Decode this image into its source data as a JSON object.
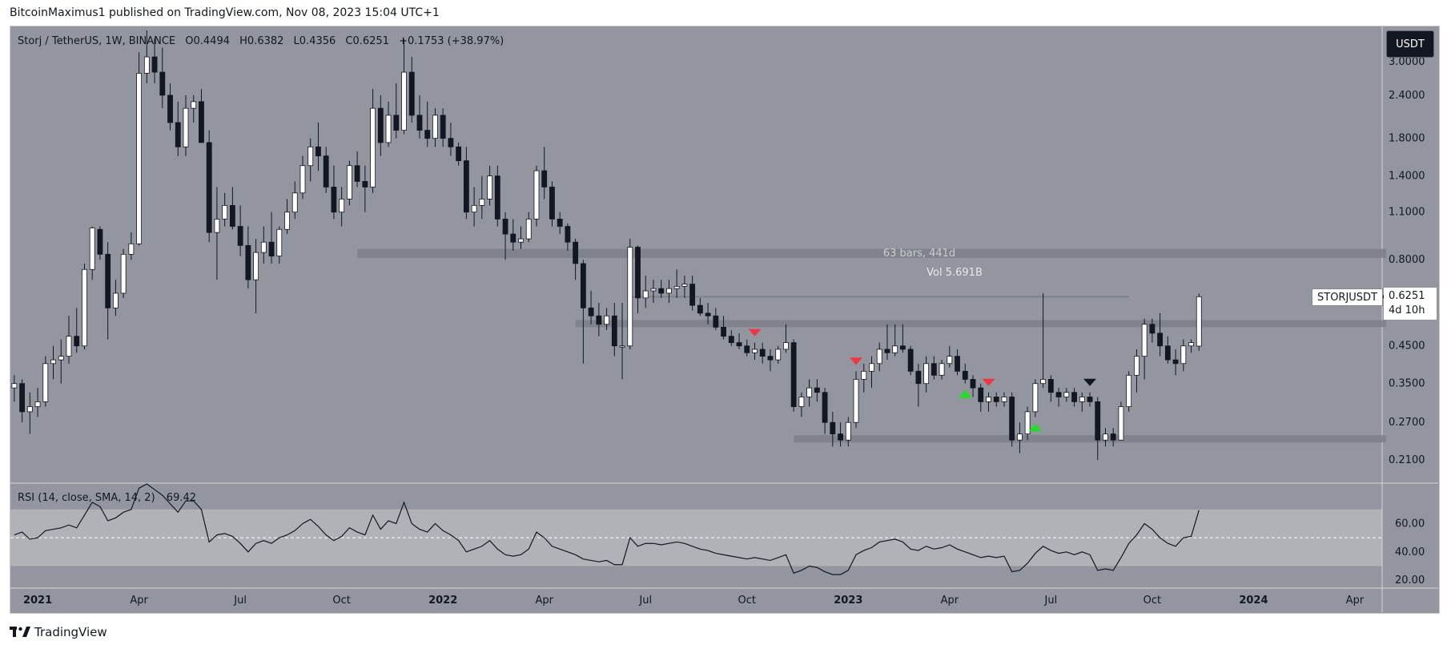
{
  "header": {
    "text": "BitcoinMaximus1 published on TradingView.com, Nov 08, 2023 15:04 UTC+1"
  },
  "legend": {
    "pair": "Storj / TetherUS, 1W, BINANCE",
    "open": "O0.4494",
    "high": "H0.6382",
    "low": "L0.4356",
    "close": "C0.6251",
    "change": "+0.1753 (+38.97%)"
  },
  "currency_button": "USDT",
  "ticker_label": "STORJUSDT",
  "price_tag": {
    "price": "0.6251",
    "countdown": "4d 10h"
  },
  "measure_label": "63 bars, 441d",
  "volume_label": "Vol 5.691B",
  "rsi_legend": {
    "label": "RSI (14, close, SMA, 14, 2)",
    "value": "69.42"
  },
  "brand": "TradingView",
  "colors": {
    "background": "#93969f",
    "bull": "#ffffff",
    "bear": "#131722",
    "band": "#7d8088",
    "red_marker": "#f23645",
    "green_marker": "#22dd22"
  },
  "chart_data": {
    "type": "candlestick",
    "title": "Storj / TetherUS, 1W, BINANCE",
    "y_scale": "log",
    "ylim": [
      0.18,
      3.8
    ],
    "y_ticks": [
      "3.0000",
      "2.4000",
      "1.8000",
      "1.4000",
      "1.1000",
      "0.8000",
      "0.6251",
      "0.4500",
      "0.3500",
      "0.2700",
      "0.2100"
    ],
    "y_tick_values": [
      3.0,
      2.4,
      1.8,
      1.4,
      1.1,
      0.8,
      0.6251,
      0.45,
      0.35,
      0.27,
      0.21
    ],
    "x_ticks": [
      "2021",
      "Apr",
      "Jul",
      "Oct",
      "2022",
      "Apr",
      "Jul",
      "Oct",
      "2023",
      "Apr",
      "Jul",
      "Oct",
      "2024",
      "Apr"
    ],
    "x_tick_weeks": [
      3,
      16,
      29,
      42,
      55,
      68,
      81,
      94,
      107,
      120,
      133,
      146,
      159,
      172
    ],
    "candles_ohlc": [
      [
        0.34,
        0.37,
        0.31,
        0.35
      ],
      [
        0.35,
        0.36,
        0.27,
        0.29
      ],
      [
        0.29,
        0.33,
        0.25,
        0.3
      ],
      [
        0.3,
        0.34,
        0.28,
        0.31
      ],
      [
        0.31,
        0.42,
        0.3,
        0.4
      ],
      [
        0.4,
        0.45,
        0.36,
        0.41
      ],
      [
        0.41,
        0.47,
        0.35,
        0.42
      ],
      [
        0.42,
        0.55,
        0.4,
        0.48
      ],
      [
        0.48,
        0.58,
        0.43,
        0.45
      ],
      [
        0.45,
        0.78,
        0.44,
        0.75
      ],
      [
        0.75,
        1.0,
        0.7,
        0.99
      ],
      [
        0.98,
        1.0,
        0.8,
        0.83
      ],
      [
        0.83,
        0.9,
        0.47,
        0.58
      ],
      [
        0.58,
        0.7,
        0.55,
        0.64
      ],
      [
        0.64,
        0.86,
        0.62,
        0.83
      ],
      [
        0.83,
        0.96,
        0.8,
        0.89
      ],
      [
        0.89,
        3.2,
        0.88,
        2.78
      ],
      [
        2.78,
        3.7,
        2.6,
        3.1
      ],
      [
        3.1,
        3.5,
        2.6,
        2.8
      ],
      [
        2.8,
        3.3,
        2.2,
        2.4
      ],
      [
        2.4,
        2.6,
        1.9,
        2.0
      ],
      [
        2.0,
        2.3,
        1.6,
        1.7
      ],
      [
        1.7,
        2.4,
        1.6,
        2.2
      ],
      [
        2.2,
        2.4,
        2.0,
        2.3
      ],
      [
        2.3,
        2.5,
        1.9,
        1.75
      ],
      [
        1.75,
        1.9,
        0.9,
        0.96
      ],
      [
        0.96,
        1.3,
        0.7,
        1.05
      ],
      [
        1.05,
        1.25,
        1.0,
        1.15
      ],
      [
        1.15,
        1.3,
        0.98,
        1.0
      ],
      [
        1.0,
        1.15,
        0.82,
        0.88
      ],
      [
        0.88,
        1.0,
        0.66,
        0.7
      ],
      [
        0.7,
        0.92,
        0.56,
        0.84
      ],
      [
        0.84,
        1.0,
        0.78,
        0.9
      ],
      [
        0.9,
        1.1,
        0.78,
        0.82
      ],
      [
        0.82,
        1.0,
        0.78,
        0.98
      ],
      [
        0.98,
        1.2,
        0.95,
        1.1
      ],
      [
        1.1,
        1.35,
        1.05,
        1.25
      ],
      [
        1.25,
        1.6,
        1.2,
        1.5
      ],
      [
        1.5,
        1.8,
        1.35,
        1.7
      ],
      [
        1.7,
        2.0,
        1.45,
        1.6
      ],
      [
        1.6,
        1.7,
        1.25,
        1.3
      ],
      [
        1.3,
        1.5,
        1.05,
        1.1
      ],
      [
        1.1,
        1.3,
        1.0,
        1.2
      ],
      [
        1.2,
        1.55,
        1.15,
        1.5
      ],
      [
        1.5,
        1.65,
        1.3,
        1.35
      ],
      [
        1.35,
        1.5,
        1.1,
        1.3
      ],
      [
        1.3,
        2.5,
        1.25,
        2.2
      ],
      [
        2.2,
        2.4,
        1.6,
        1.75
      ],
      [
        1.75,
        2.3,
        1.7,
        2.1
      ],
      [
        2.1,
        2.6,
        1.8,
        1.9
      ],
      [
        1.9,
        3.5,
        1.85,
        2.8
      ],
      [
        2.8,
        3.1,
        2.0,
        2.1
      ],
      [
        2.1,
        2.4,
        1.8,
        1.9
      ],
      [
        1.9,
        2.3,
        1.7,
        1.8
      ],
      [
        1.8,
        2.2,
        1.7,
        2.1
      ],
      [
        2.1,
        2.2,
        1.7,
        1.8
      ],
      [
        1.8,
        2.0,
        1.6,
        1.7
      ],
      [
        1.7,
        1.75,
        1.5,
        1.55
      ],
      [
        1.55,
        1.7,
        1.05,
        1.1
      ],
      [
        1.1,
        1.3,
        1.0,
        1.15
      ],
      [
        1.15,
        1.4,
        1.05,
        1.2
      ],
      [
        1.2,
        1.5,
        1.15,
        1.4
      ],
      [
        1.4,
        1.5,
        1.0,
        1.05
      ],
      [
        1.05,
        1.1,
        0.8,
        0.95
      ],
      [
        0.95,
        1.05,
        0.85,
        0.9
      ],
      [
        0.9,
        1.0,
        0.86,
        0.92
      ],
      [
        0.92,
        1.1,
        0.9,
        1.05
      ],
      [
        1.05,
        1.5,
        1.0,
        1.45
      ],
      [
        1.45,
        1.7,
        1.2,
        1.3
      ],
      [
        1.3,
        1.35,
        1.0,
        1.05
      ],
      [
        1.05,
        1.1,
        0.95,
        1.0
      ],
      [
        1.0,
        1.02,
        0.85,
        0.9
      ],
      [
        0.9,
        0.92,
        0.7,
        0.78
      ],
      [
        0.78,
        0.8,
        0.4,
        0.58
      ],
      [
        0.58,
        0.65,
        0.52,
        0.55
      ],
      [
        0.55,
        0.6,
        0.48,
        0.52
      ],
      [
        0.52,
        0.58,
        0.5,
        0.55
      ],
      [
        0.55,
        0.6,
        0.42,
        0.45
      ],
      [
        0.45,
        0.6,
        0.36,
        0.45
      ],
      [
        0.45,
        0.92,
        0.44,
        0.87
      ],
      [
        0.87,
        0.88,
        0.56,
        0.62
      ],
      [
        0.62,
        0.72,
        0.58,
        0.65
      ],
      [
        0.65,
        0.7,
        0.6,
        0.66
      ],
      [
        0.66,
        0.7,
        0.62,
        0.64
      ],
      [
        0.64,
        0.7,
        0.6,
        0.66
      ],
      [
        0.66,
        0.75,
        0.62,
        0.67
      ],
      [
        0.67,
        0.72,
        0.62,
        0.68
      ],
      [
        0.68,
        0.72,
        0.57,
        0.59
      ],
      [
        0.59,
        0.62,
        0.55,
        0.56
      ],
      [
        0.56,
        0.6,
        0.52,
        0.55
      ],
      [
        0.55,
        0.58,
        0.5,
        0.51
      ],
      [
        0.51,
        0.55,
        0.47,
        0.48
      ],
      [
        0.48,
        0.5,
        0.45,
        0.46
      ],
      [
        0.46,
        0.49,
        0.44,
        0.45
      ],
      [
        0.45,
        0.47,
        0.42,
        0.43
      ],
      [
        0.43,
        0.46,
        0.41,
        0.44
      ],
      [
        0.44,
        0.46,
        0.4,
        0.42
      ],
      [
        0.42,
        0.44,
        0.38,
        0.41
      ],
      [
        0.41,
        0.45,
        0.4,
        0.44
      ],
      [
        0.44,
        0.52,
        0.43,
        0.46
      ],
      [
        0.46,
        0.47,
        0.29,
        0.3
      ],
      [
        0.3,
        0.33,
        0.28,
        0.32
      ],
      [
        0.32,
        0.36,
        0.3,
        0.34
      ],
      [
        0.34,
        0.36,
        0.31,
        0.33
      ],
      [
        0.33,
        0.34,
        0.25,
        0.27
      ],
      [
        0.27,
        0.29,
        0.23,
        0.25
      ],
      [
        0.25,
        0.27,
        0.23,
        0.24
      ],
      [
        0.24,
        0.28,
        0.23,
        0.27
      ],
      [
        0.27,
        0.38,
        0.26,
        0.36
      ],
      [
        0.36,
        0.4,
        0.33,
        0.38
      ],
      [
        0.38,
        0.42,
        0.34,
        0.4
      ],
      [
        0.4,
        0.46,
        0.38,
        0.44
      ],
      [
        0.44,
        0.52,
        0.41,
        0.43
      ],
      [
        0.43,
        0.52,
        0.42,
        0.45
      ],
      [
        0.45,
        0.52,
        0.43,
        0.44
      ],
      [
        0.44,
        0.45,
        0.37,
        0.38
      ],
      [
        0.38,
        0.4,
        0.3,
        0.35
      ],
      [
        0.35,
        0.42,
        0.33,
        0.4
      ],
      [
        0.4,
        0.42,
        0.36,
        0.37
      ],
      [
        0.37,
        0.41,
        0.36,
        0.4
      ],
      [
        0.4,
        0.45,
        0.39,
        0.42
      ],
      [
        0.42,
        0.44,
        0.37,
        0.38
      ],
      [
        0.38,
        0.4,
        0.35,
        0.36
      ],
      [
        0.36,
        0.37,
        0.32,
        0.34
      ],
      [
        0.34,
        0.35,
        0.29,
        0.31
      ],
      [
        0.31,
        0.33,
        0.29,
        0.32
      ],
      [
        0.32,
        0.33,
        0.3,
        0.31
      ],
      [
        0.31,
        0.33,
        0.3,
        0.32
      ],
      [
        0.32,
        0.33,
        0.23,
        0.24
      ],
      [
        0.24,
        0.27,
        0.22,
        0.25
      ],
      [
        0.25,
        0.3,
        0.24,
        0.29
      ],
      [
        0.29,
        0.36,
        0.28,
        0.35
      ],
      [
        0.35,
        0.64,
        0.34,
        0.36
      ],
      [
        0.36,
        0.37,
        0.31,
        0.33
      ],
      [
        0.33,
        0.34,
        0.3,
        0.32
      ],
      [
        0.32,
        0.34,
        0.31,
        0.33
      ],
      [
        0.33,
        0.34,
        0.3,
        0.31
      ],
      [
        0.31,
        0.33,
        0.29,
        0.32
      ],
      [
        0.32,
        0.33,
        0.3,
        0.31
      ],
      [
        0.31,
        0.32,
        0.21,
        0.24
      ],
      [
        0.24,
        0.26,
        0.23,
        0.25
      ],
      [
        0.25,
        0.26,
        0.23,
        0.24
      ],
      [
        0.24,
        0.31,
        0.24,
        0.3
      ],
      [
        0.3,
        0.38,
        0.29,
        0.37
      ],
      [
        0.37,
        0.44,
        0.33,
        0.42
      ],
      [
        0.42,
        0.54,
        0.36,
        0.52
      ],
      [
        0.52,
        0.54,
        0.46,
        0.49
      ],
      [
        0.49,
        0.56,
        0.42,
        0.45
      ],
      [
        0.45,
        0.48,
        0.4,
        0.41
      ],
      [
        0.41,
        0.44,
        0.37,
        0.4
      ],
      [
        0.4,
        0.47,
        0.38,
        0.45
      ],
      [
        0.45,
        0.47,
        0.43,
        0.46
      ],
      [
        0.4494,
        0.6382,
        0.4356,
        0.6251
      ]
    ],
    "rsi": {
      "label": "RSI (14, close, SMA, 14, 2)",
      "last": 69.42,
      "ylim": [
        15,
        88
      ],
      "band": [
        30,
        70
      ],
      "midline": 50,
      "y_ticks": [
        20,
        40,
        60
      ],
      "values": [
        52,
        54,
        49,
        50,
        55,
        56,
        57,
        59,
        57,
        66,
        75,
        72,
        62,
        64,
        68,
        70,
        85,
        88,
        84,
        80,
        74,
        68,
        76,
        76,
        70,
        47,
        52,
        53,
        51,
        46,
        40,
        46,
        48,
        46,
        50,
        52,
        55,
        60,
        63,
        58,
        52,
        48,
        51,
        57,
        54,
        52,
        66,
        56,
        62,
        60,
        75,
        60,
        56,
        54,
        60,
        55,
        52,
        48,
        40,
        42,
        44,
        48,
        42,
        38,
        37,
        38,
        42,
        54,
        50,
        44,
        42,
        40,
        38,
        35,
        34,
        33,
        34,
        31,
        31,
        50,
        44,
        46,
        46,
        45,
        46,
        47,
        46,
        44,
        42,
        41,
        39,
        38,
        37,
        36,
        35,
        36,
        35,
        34,
        36,
        38,
        25,
        27,
        30,
        29,
        26,
        24,
        24,
        27,
        38,
        41,
        43,
        47,
        48,
        49,
        47,
        42,
        41,
        44,
        42,
        43,
        45,
        42,
        40,
        38,
        36,
        37,
        36,
        37,
        26,
        27,
        32,
        39,
        44,
        41,
        39,
        40,
        38,
        40,
        38,
        27,
        28,
        27,
        36,
        46,
        52,
        60,
        56,
        50,
        46,
        44,
        50,
        51,
        69.42
      ]
    },
    "annotations": {
      "red_triangles_down_weeks": [
        95,
        108,
        125
      ],
      "black_triangle_down_week": [
        138
      ],
      "green_triangles_up_weeks": [
        122,
        131
      ],
      "resistance_zones": [
        {
          "from_week": 44,
          "to_week": 176,
          "low": 0.81,
          "high": 0.86
        },
        {
          "from_week": 72,
          "to_week": 176,
          "low": 0.51,
          "high": 0.535
        },
        {
          "from_week": 100,
          "to_week": 176,
          "low": 0.236,
          "high": 0.248
        }
      ],
      "horizontal_line": {
        "from_week": 79,
        "to_week": 143,
        "value": 0.6251
      }
    }
  }
}
